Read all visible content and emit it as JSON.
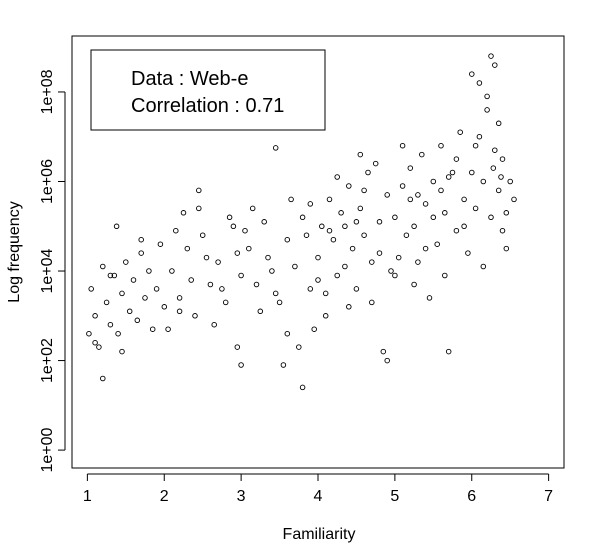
{
  "chart_data": {
    "type": "scatter",
    "title": "",
    "xlabel": "Familiarity",
    "ylabel": "Log frequency",
    "xlim": [
      0.8,
      7.2
    ],
    "ylim_log10": [
      -0.4,
      9.25
    ],
    "y_scale": "log",
    "x_ticks": [
      "1",
      "2",
      "3",
      "4",
      "5",
      "6",
      "7"
    ],
    "y_ticks": [
      "1e+00",
      "1e+02",
      "1e+04",
      "1e+06",
      "1e+08"
    ],
    "grid": false,
    "marker": "open-circle",
    "marker_color": "#000000",
    "annotation": {
      "line1": "Data : Web-e",
      "line2": "Correlation : 0.71",
      "position": "top-left"
    },
    "series": [
      {
        "points": [
          [
            1.05,
            3.6
          ],
          [
            1.1,
            3.0
          ],
          [
            1.15,
            2.3
          ],
          [
            1.2,
            4.1
          ],
          [
            1.25,
            3.3
          ],
          [
            1.3,
            2.8
          ],
          [
            1.35,
            3.9
          ],
          [
            1.4,
            2.6
          ],
          [
            1.45,
            3.5
          ],
          [
            1.5,
            4.2
          ],
          [
            1.55,
            3.1
          ],
          [
            1.6,
            3.8
          ],
          [
            1.65,
            2.9
          ],
          [
            1.7,
            4.4
          ],
          [
            1.75,
            3.4
          ],
          [
            1.8,
            4.0
          ],
          [
            1.85,
            2.7
          ],
          [
            1.9,
            3.6
          ],
          [
            1.95,
            4.6
          ],
          [
            2.0,
            3.2
          ],
          [
            1.2,
            1.6
          ],
          [
            1.38,
            5.0
          ],
          [
            1.7,
            4.7
          ],
          [
            2.25,
            5.3
          ],
          [
            2.45,
            5.8
          ],
          [
            1.1,
            2.4
          ],
          [
            1.02,
            2.6
          ],
          [
            1.3,
            3.9
          ],
          [
            1.45,
            2.2
          ],
          [
            2.1,
            4.0
          ],
          [
            2.2,
            3.4
          ],
          [
            2.3,
            4.5
          ],
          [
            2.4,
            3.0
          ],
          [
            2.5,
            4.8
          ],
          [
            2.6,
            3.7
          ],
          [
            2.7,
            4.2
          ],
          [
            2.8,
            3.3
          ],
          [
            2.9,
            5.0
          ],
          [
            3.0,
            3.9
          ],
          [
            2.15,
            4.9
          ],
          [
            2.35,
            3.8
          ],
          [
            2.55,
            4.3
          ],
          [
            2.75,
            3.6
          ],
          [
            2.95,
            4.4
          ],
          [
            2.65,
            2.8
          ],
          [
            2.85,
            5.2
          ],
          [
            2.05,
            2.7
          ],
          [
            2.45,
            5.4
          ],
          [
            2.95,
            2.3
          ],
          [
            2.2,
            3.1
          ],
          [
            3.0,
            1.9
          ],
          [
            3.1,
            4.5
          ],
          [
            3.2,
            3.7
          ],
          [
            3.3,
            5.1
          ],
          [
            3.4,
            4.0
          ],
          [
            3.45,
            6.75
          ],
          [
            3.5,
            3.3
          ],
          [
            3.6,
            4.7
          ],
          [
            3.7,
            4.1
          ],
          [
            3.8,
            5.2
          ],
          [
            3.9,
            3.6
          ],
          [
            3.55,
            1.9
          ],
          [
            3.8,
            1.4
          ],
          [
            3.75,
            2.3
          ],
          [
            3.25,
            3.1
          ],
          [
            3.65,
            5.6
          ],
          [
            3.35,
            4.3
          ],
          [
            3.15,
            5.4
          ],
          [
            3.85,
            4.8
          ],
          [
            3.95,
            2.7
          ],
          [
            3.05,
            4.9
          ],
          [
            3.45,
            3.5
          ],
          [
            3.9,
            5.5
          ],
          [
            3.6,
            2.6
          ],
          [
            4.0,
            4.3
          ],
          [
            4.05,
            5.0
          ],
          [
            4.1,
            3.5
          ],
          [
            4.15,
            5.6
          ],
          [
            4.2,
            4.7
          ],
          [
            4.25,
            3.9
          ],
          [
            4.3,
            5.3
          ],
          [
            4.35,
            4.1
          ],
          [
            4.4,
            5.9
          ],
          [
            4.45,
            4.5
          ],
          [
            4.5,
            3.6
          ],
          [
            4.55,
            5.4
          ],
          [
            4.6,
            4.8
          ],
          [
            4.65,
            6.2
          ],
          [
            4.7,
            4.2
          ],
          [
            4.75,
            6.4
          ],
          [
            4.8,
            5.1
          ],
          [
            4.85,
            2.2
          ],
          [
            4.9,
            5.7
          ],
          [
            4.95,
            4.0
          ],
          [
            4.1,
            3.0
          ],
          [
            4.25,
            6.1
          ],
          [
            4.4,
            3.2
          ],
          [
            4.55,
            6.6
          ],
          [
            4.7,
            3.3
          ],
          [
            4.9,
            2.0
          ],
          [
            4.35,
            5.0
          ],
          [
            4.6,
            5.8
          ],
          [
            4.8,
            4.4
          ],
          [
            4.15,
            4.9
          ],
          [
            4.5,
            5.1
          ],
          [
            4.0,
            3.8
          ],
          [
            5.0,
            5.2
          ],
          [
            5.05,
            4.3
          ],
          [
            5.1,
            5.9
          ],
          [
            5.15,
            4.8
          ],
          [
            5.2,
            6.3
          ],
          [
            5.25,
            5.0
          ],
          [
            5.3,
            4.2
          ],
          [
            5.35,
            6.6
          ],
          [
            5.4,
            5.5
          ],
          [
            5.45,
            3.4
          ],
          [
            5.5,
            6.0
          ],
          [
            5.55,
            4.6
          ],
          [
            5.6,
            6.8
          ],
          [
            5.65,
            5.3
          ],
          [
            5.7,
            2.2
          ],
          [
            5.75,
            6.2
          ],
          [
            5.8,
            4.9
          ],
          [
            5.85,
            7.1
          ],
          [
            5.9,
            5.6
          ],
          [
            5.95,
            4.4
          ],
          [
            5.0,
            3.9
          ],
          [
            5.2,
            5.6
          ],
          [
            5.4,
            4.5
          ],
          [
            5.6,
            5.8
          ],
          [
            5.8,
            6.5
          ],
          [
            5.1,
            6.8
          ],
          [
            5.3,
            5.7
          ],
          [
            5.5,
            5.2
          ],
          [
            5.7,
            6.1
          ],
          [
            5.9,
            5.0
          ],
          [
            5.25,
            3.7
          ],
          [
            5.65,
            3.9
          ],
          [
            6.0,
            6.2
          ],
          [
            6.05,
            5.4
          ],
          [
            6.1,
            7.0
          ],
          [
            6.15,
            6.0
          ],
          [
            6.2,
            7.6
          ],
          [
            6.25,
            5.2
          ],
          [
            6.3,
            6.7
          ],
          [
            6.35,
            5.8
          ],
          [
            6.4,
            6.5
          ],
          [
            6.45,
            4.5
          ],
          [
            6.5,
            6.0
          ],
          [
            6.55,
            5.6
          ],
          [
            6.0,
            8.4
          ],
          [
            6.1,
            8.2
          ],
          [
            6.2,
            7.9
          ],
          [
            6.25,
            8.8
          ],
          [
            6.3,
            8.6
          ],
          [
            6.35,
            7.3
          ],
          [
            6.4,
            4.9
          ],
          [
            6.05,
            6.8
          ],
          [
            6.15,
            4.1
          ],
          [
            6.28,
            6.3
          ],
          [
            6.45,
            5.3
          ],
          [
            6.38,
            6.1
          ]
        ]
      }
    ]
  }
}
